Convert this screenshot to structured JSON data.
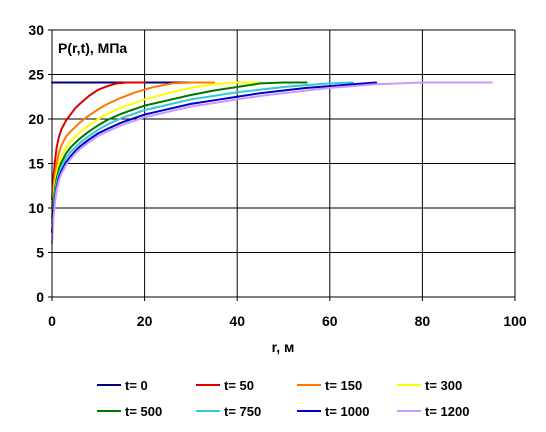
{
  "chart_data": {
    "type": "line",
    "ylabel": "P(r,t), МПа",
    "xlabel": "r, м",
    "xlim": [
      0,
      100
    ],
    "ylim": [
      0,
      30
    ],
    "xticks": [
      0,
      20,
      40,
      60,
      80,
      100
    ],
    "yticks": [
      0,
      5,
      10,
      15,
      20,
      25,
      30
    ],
    "grid": true,
    "legend_position": "bottom",
    "series": [
      {
        "name": "t= 0",
        "color": "#000080",
        "x": [
          0,
          30
        ],
        "y": [
          24.1,
          24.1
        ]
      },
      {
        "name": "t= 50",
        "color": "#dd0000",
        "x": [
          0,
          0.3,
          0.7,
          1,
          1.5,
          2,
          3,
          4,
          5,
          6,
          8,
          10,
          12,
          14,
          16,
          18,
          20
        ],
        "y": [
          11,
          13.5,
          15.5,
          16.8,
          18,
          18.8,
          19.8,
          20.5,
          21.2,
          21.7,
          22.6,
          23.3,
          23.7,
          24,
          24.1,
          24.1,
          24.1
        ]
      },
      {
        "name": "t= 150",
        "color": "#ff7700",
        "x": [
          0,
          0.3,
          0.7,
          1,
          1.5,
          2,
          3,
          4,
          5,
          6,
          8,
          10,
          12,
          15,
          18,
          22,
          26,
          30,
          35
        ],
        "y": [
          10,
          12.3,
          14,
          15,
          16.2,
          17,
          18,
          18.6,
          19.1,
          19.6,
          20.4,
          21.1,
          21.7,
          22.4,
          23,
          23.6,
          24,
          24.1,
          24.1
        ]
      },
      {
        "name": "t= 300",
        "color": "#ffff00",
        "x": [
          0,
          0.3,
          0.7,
          1,
          1.5,
          2,
          3,
          4,
          5,
          6,
          8,
          10,
          12,
          15,
          20,
          25,
          30,
          35,
          40,
          45
        ],
        "y": [
          9.5,
          11.5,
          13,
          14,
          15.1,
          15.8,
          16.8,
          17.5,
          18,
          18.5,
          19.3,
          20,
          20.6,
          21.3,
          22.2,
          22.9,
          23.5,
          23.9,
          24.1,
          24.1
        ]
      },
      {
        "name": "t= 500",
        "color": "#007700",
        "x": [
          0,
          0.3,
          0.7,
          1,
          1.5,
          2,
          3,
          4,
          5,
          6,
          8,
          10,
          12,
          15,
          20,
          25,
          30,
          35,
          40,
          45,
          50,
          55
        ],
        "y": [
          8.8,
          10.8,
          12.3,
          13.3,
          14.4,
          15.1,
          16.1,
          16.8,
          17.3,
          17.8,
          18.6,
          19.3,
          19.9,
          20.6,
          21.5,
          22.1,
          22.7,
          23.2,
          23.6,
          24,
          24.1,
          24.1
        ]
      },
      {
        "name": "t= 750",
        "color": "#33cccc",
        "x": [
          0,
          0.3,
          0.7,
          1,
          1.5,
          2,
          3,
          4,
          5,
          6,
          8,
          10,
          12,
          15,
          20,
          25,
          30,
          35,
          40,
          45,
          50,
          55,
          60,
          65
        ],
        "y": [
          8.3,
          10.3,
          11.8,
          12.8,
          13.9,
          14.6,
          15.6,
          16.3,
          16.8,
          17.3,
          18.1,
          18.8,
          19.4,
          20.1,
          21,
          21.6,
          22.2,
          22.6,
          23,
          23.3,
          23.6,
          23.8,
          24,
          24.1
        ]
      },
      {
        "name": "t= 1000",
        "color": "#0000cc",
        "x": [
          0,
          0.3,
          0.7,
          1,
          1.5,
          2,
          3,
          4,
          5,
          6,
          8,
          10,
          12,
          15,
          20,
          25,
          30,
          35,
          40,
          45,
          50,
          55,
          60,
          65,
          70
        ],
        "y": [
          7.3,
          9.6,
          11.3,
          12.3,
          13.4,
          14.1,
          15.1,
          15.8,
          16.4,
          16.9,
          17.7,
          18.4,
          18.9,
          19.6,
          20.5,
          21.1,
          21.7,
          22.1,
          22.5,
          22.9,
          23.2,
          23.5,
          23.7,
          23.9,
          24.1
        ]
      },
      {
        "name": "t= 1200",
        "color": "#cc99ff",
        "x": [
          0,
          0.3,
          0.7,
          1,
          1.5,
          2,
          3,
          4,
          5,
          6,
          8,
          10,
          12,
          15,
          20,
          25,
          30,
          35,
          40,
          45,
          50,
          55,
          60,
          65,
          70,
          80,
          95
        ],
        "y": [
          6,
          8.8,
          10.9,
          12,
          13.1,
          13.8,
          14.8,
          15.5,
          16.1,
          16.6,
          17.4,
          18.1,
          18.6,
          19.3,
          20.2,
          20.8,
          21.4,
          21.8,
          22.2,
          22.6,
          22.9,
          23.2,
          23.5,
          23.7,
          23.9,
          24.1,
          24.1
        ]
      }
    ]
  }
}
